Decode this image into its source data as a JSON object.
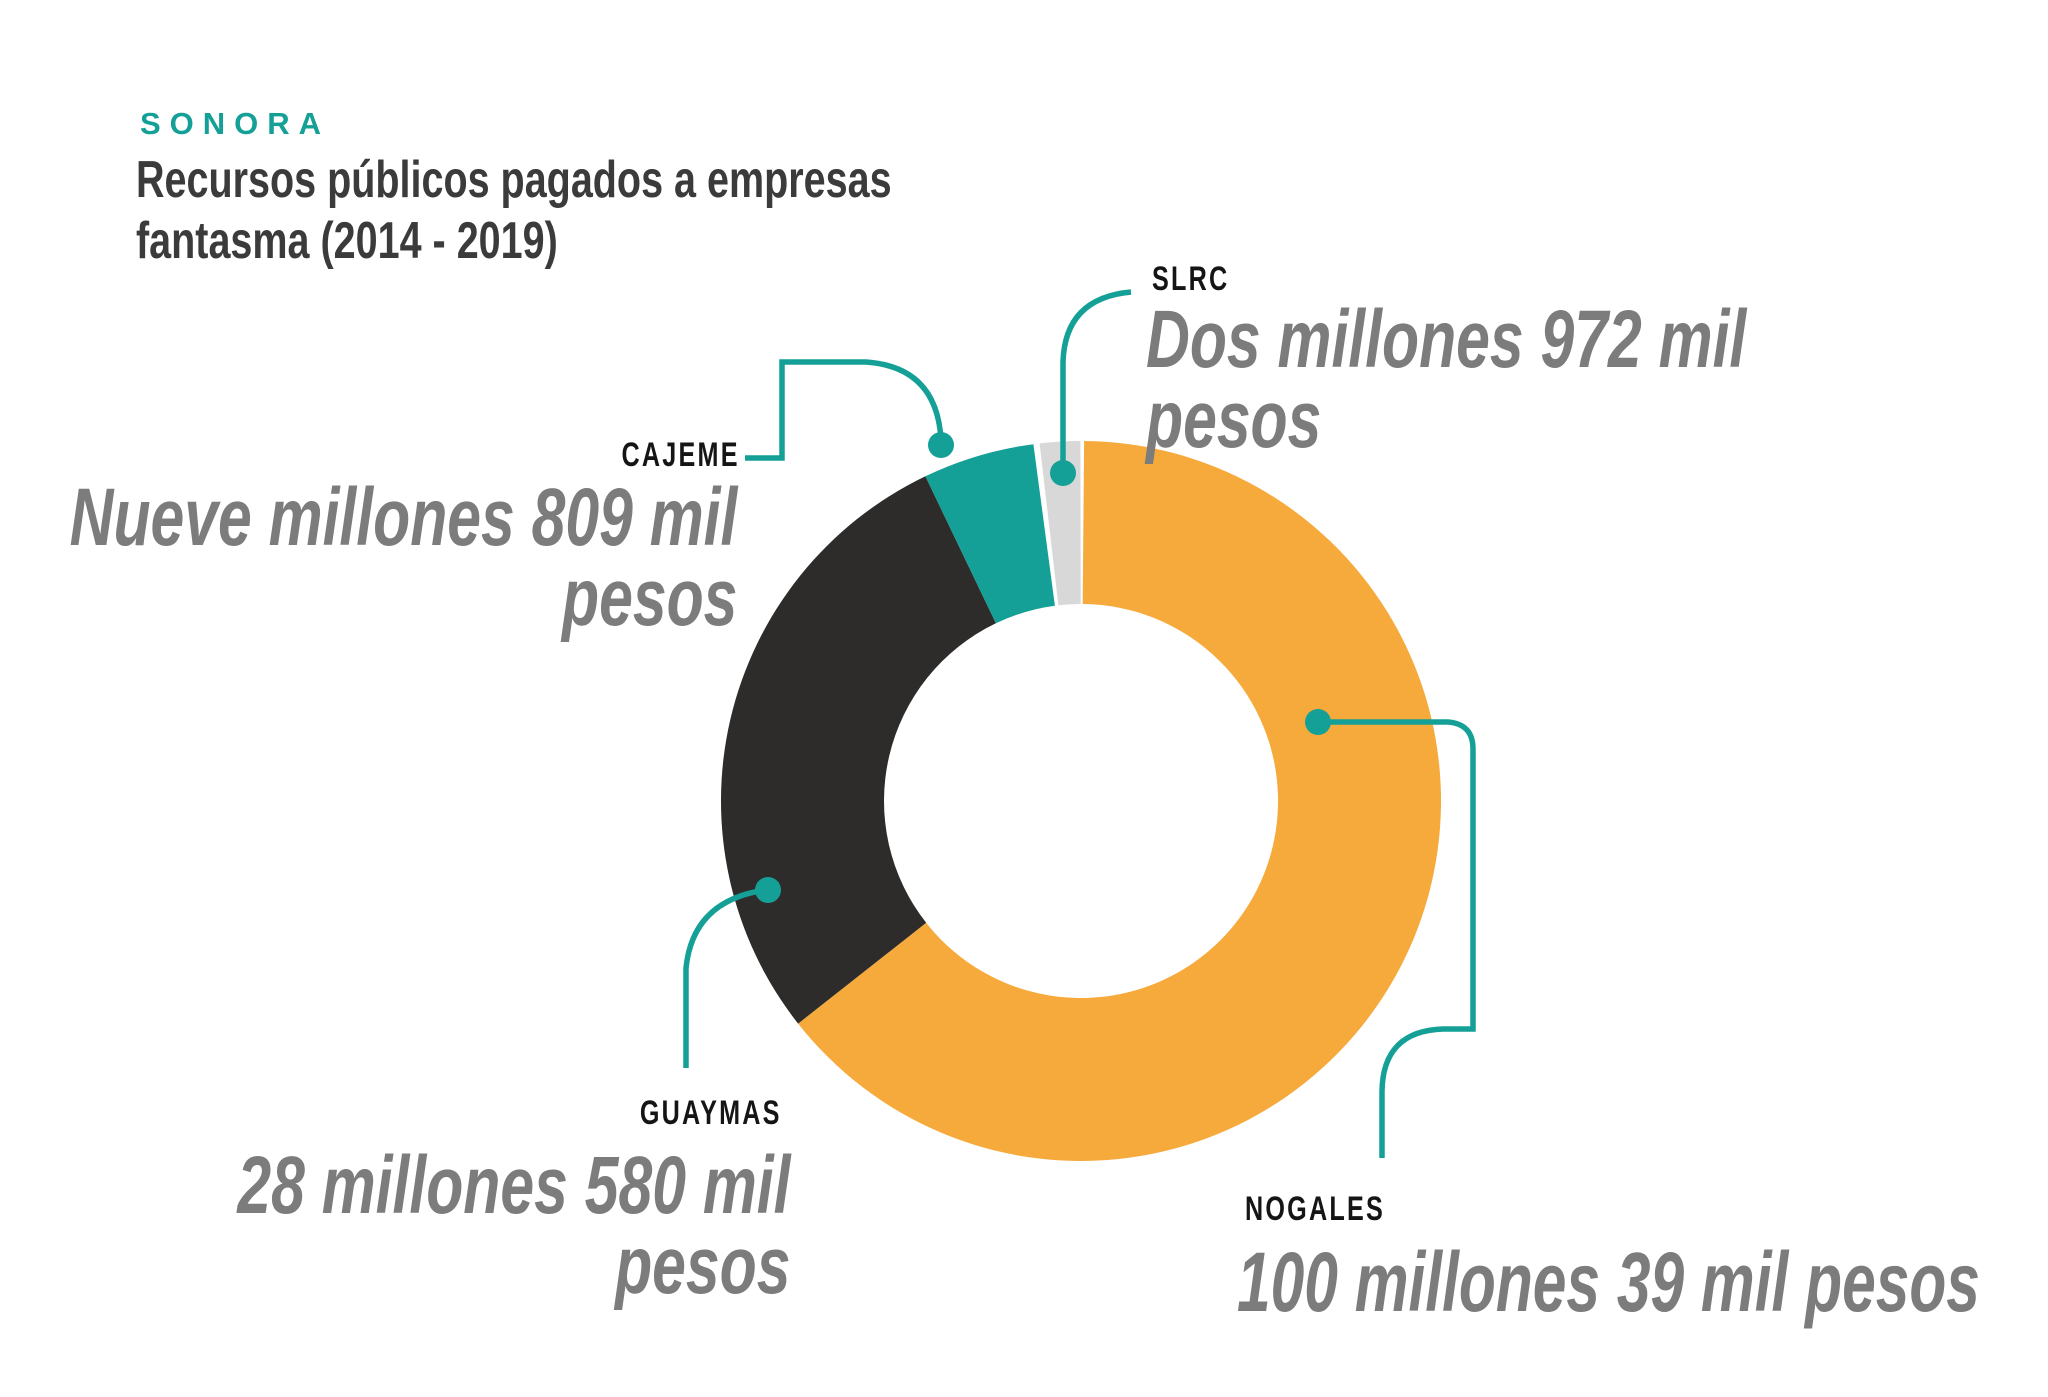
{
  "header": {
    "kicker": "SONORA",
    "title_line1": "Recursos públicos pagados a empresas",
    "title_line2": "fantasma (2014 - 2019)"
  },
  "colors": {
    "accent_teal": "#14A096",
    "kicker_text": "#14A096",
    "title_text": "#3B3B3B",
    "label_text": "#151515",
    "value_text": "#7C7C7C",
    "background": "#FFFFFF"
  },
  "chart_data": {
    "type": "pie",
    "subtype": "donut",
    "title": "SONORA — Recursos públicos pagados a empresas fantasma (2014 - 2019)",
    "unit": "MXN pesos",
    "legend_position": "callouts-with-leader-lines",
    "segments": [
      {
        "name": "NOGALES",
        "value": 100039000,
        "value_text": "100 millones 39 mil pesos",
        "percent_of_total": 70.8,
        "color": "#F6AA3C",
        "callout_lines": [
          "100 millones 39 mil pesos",
          ""
        ]
      },
      {
        "name": "GUAYMAS",
        "value": 28580000,
        "value_text": "28 millones 580 mil pesos",
        "percent_of_total": 20.2,
        "color": "#2D2C2B",
        "callout_lines": [
          "28 millones 580 mil",
          "pesos"
        ]
      },
      {
        "name": "CAJEME",
        "value": 9809000,
        "value_text": "Nueve millones 809 mil pesos",
        "percent_of_total": 6.9,
        "color": "#14A096",
        "callout_lines": [
          "Nueve millones 809 mil",
          "pesos"
        ]
      },
      {
        "name": "SLRC",
        "value": 2972000,
        "value_text": "Dos millones 972 mil pesos",
        "percent_of_total": 2.1,
        "color": "#D8D8D8",
        "callout_lines": [
          "Dos millones 972 mil",
          "pesos"
        ]
      }
    ]
  }
}
